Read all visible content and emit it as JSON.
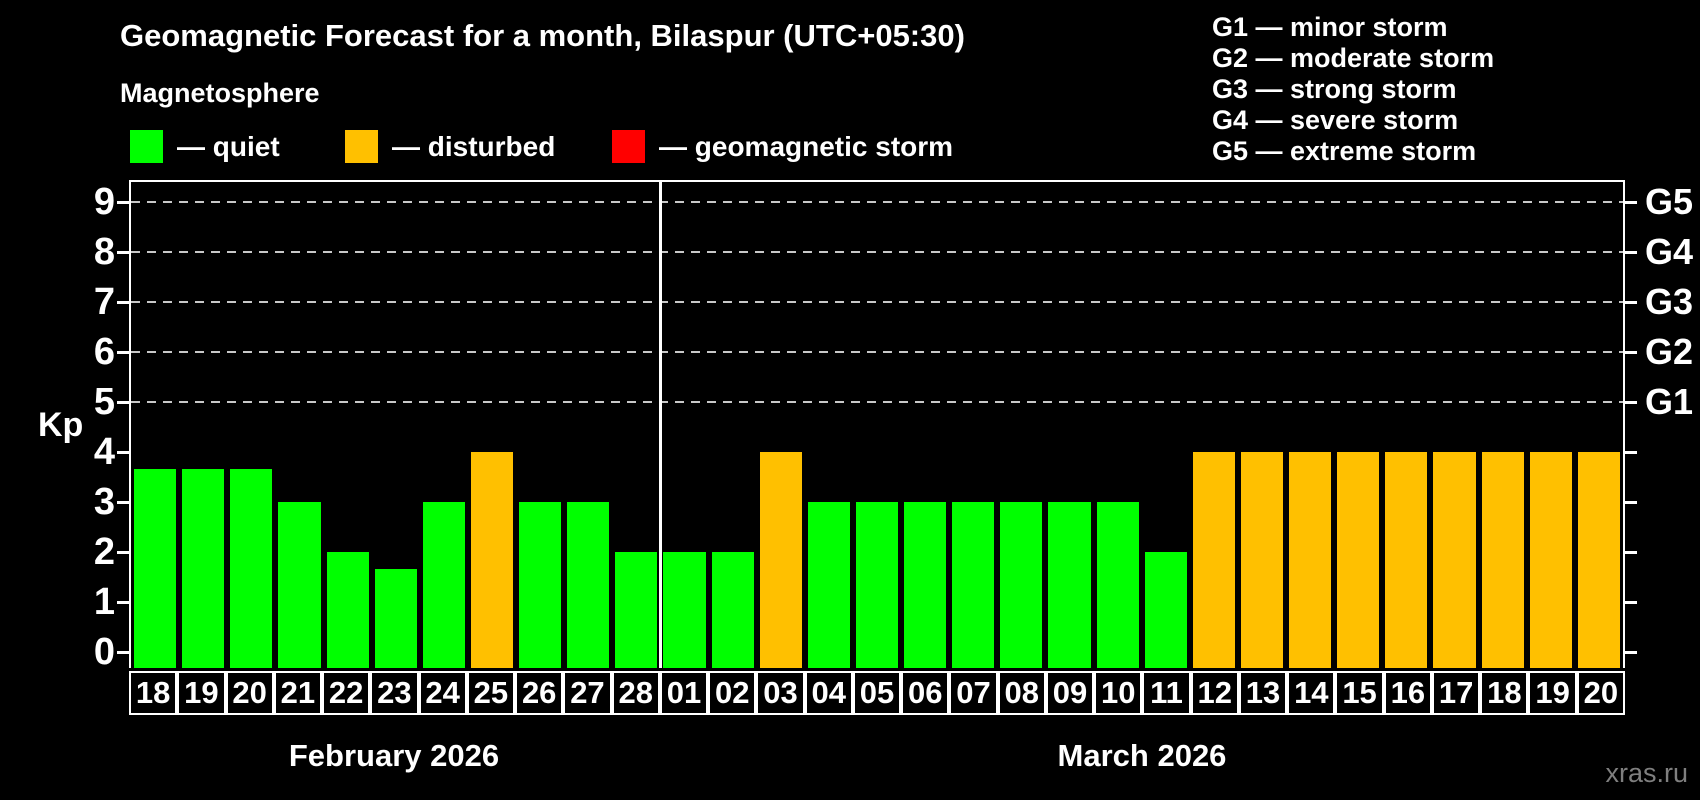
{
  "title": "Geomagnetic Forecast for a month, Bilaspur (UTC+05:30)",
  "subtitle": "Magnetosphere",
  "legend": {
    "items": [
      {
        "key": "quiet",
        "label": "— quiet",
        "color": "#00ff00"
      },
      {
        "key": "disturbed",
        "label": "— disturbed",
        "color": "#ffc000"
      },
      {
        "key": "storm",
        "label": "— geomagnetic storm",
        "color": "#ff0000"
      }
    ]
  },
  "g_legend": [
    "G1 — minor storm",
    "G2 — moderate storm",
    "G3 — strong storm",
    "G4 — severe storm",
    "G5 — extreme storm"
  ],
  "watermark": "xras.ru",
  "chart_data": {
    "type": "bar",
    "title": "Geomagnetic Forecast for a month, Bilaspur (UTC+05:30)",
    "ylabel": "Kp",
    "ylim": [
      0,
      9
    ],
    "yticks": [
      0,
      1,
      2,
      3,
      4,
      5,
      6,
      7,
      8,
      9
    ],
    "gridlines_at": [
      5,
      6,
      7,
      8,
      9
    ],
    "grid": "dashed-horizontal",
    "right_axis": [
      {
        "kp": 5,
        "label": "G1"
      },
      {
        "kp": 6,
        "label": "G2"
      },
      {
        "kp": 7,
        "label": "G3"
      },
      {
        "kp": 8,
        "label": "G4"
      },
      {
        "kp": 9,
        "label": "G5"
      }
    ],
    "months": [
      {
        "label": "February 2026",
        "days": 11
      },
      {
        "label": "March 2026",
        "days": 20
      }
    ],
    "categories": [
      "18",
      "19",
      "20",
      "21",
      "22",
      "23",
      "24",
      "25",
      "26",
      "27",
      "28",
      "01",
      "02",
      "03",
      "04",
      "05",
      "06",
      "07",
      "08",
      "09",
      "10",
      "11",
      "12",
      "13",
      "14",
      "15",
      "16",
      "17",
      "18",
      "19",
      "20"
    ],
    "values": [
      3.67,
      3.67,
      3.67,
      3,
      2,
      1.67,
      3,
      4,
      3,
      3,
      2,
      2,
      2,
      4,
      3,
      3,
      3,
      3,
      3,
      3,
      3,
      2,
      4,
      4,
      4,
      4,
      4,
      4,
      4,
      4,
      4
    ],
    "states": [
      "quiet",
      "quiet",
      "quiet",
      "quiet",
      "quiet",
      "quiet",
      "quiet",
      "disturbed",
      "quiet",
      "quiet",
      "quiet",
      "quiet",
      "quiet",
      "disturbed",
      "quiet",
      "quiet",
      "quiet",
      "quiet",
      "quiet",
      "quiet",
      "quiet",
      "quiet",
      "disturbed",
      "disturbed",
      "disturbed",
      "disturbed",
      "disturbed",
      "disturbed",
      "disturbed",
      "disturbed",
      "disturbed"
    ],
    "colors": {
      "quiet": "#00ff00",
      "disturbed": "#ffc000",
      "storm": "#ff0000"
    }
  }
}
